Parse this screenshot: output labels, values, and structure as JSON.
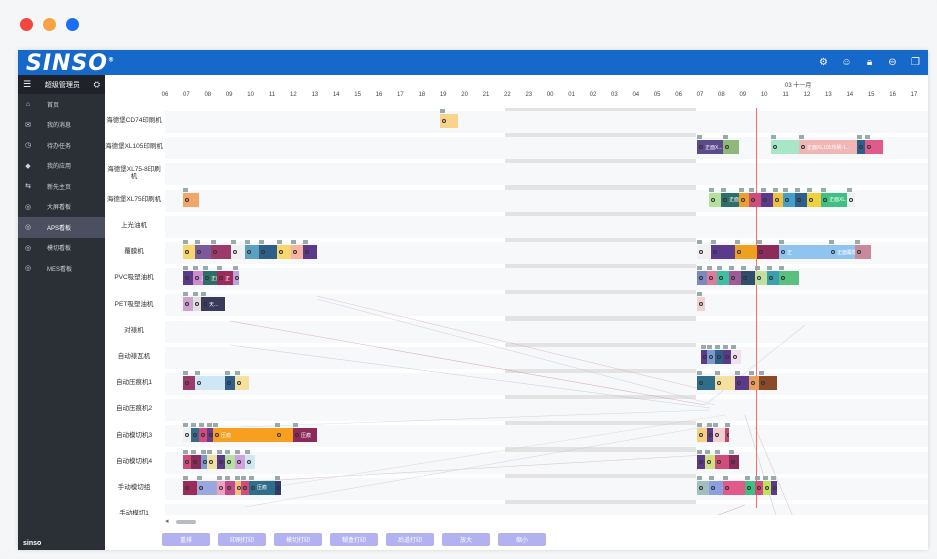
{
  "app": {
    "logo_text": "SINSO",
    "logo_mark": "®",
    "colors": {
      "topbar": "#1769c9",
      "sidebar": "#2b2f36",
      "accent_button": "#b2b2f0",
      "now_line": "#ff6b6b"
    }
  },
  "sidebar": {
    "title": "超级管理员",
    "items": [
      {
        "label": "首页",
        "icon": "home-icon",
        "active": false
      },
      {
        "label": "我的消息",
        "icon": "message-icon",
        "active": false
      },
      {
        "label": "待办任务",
        "icon": "clock-icon",
        "active": false
      },
      {
        "label": "我的应用",
        "icon": "box-icon",
        "active": false
      },
      {
        "label": "新先主页",
        "icon": "swap-icon",
        "active": false
      },
      {
        "label": "大屏看板",
        "icon": "circle-icon",
        "active": false
      },
      {
        "label": "APS看板",
        "icon": "circle-icon",
        "active": true
      },
      {
        "label": "模切看板",
        "icon": "circle-icon",
        "active": false
      },
      {
        "label": "MES看板",
        "icon": "circle-icon",
        "active": false
      }
    ],
    "footer": "sinso"
  },
  "gantt": {
    "month_label": "03 十一月",
    "hours": [
      "06",
      "07",
      "08",
      "09",
      "10",
      "11",
      "12",
      "13",
      "14",
      "15",
      "16",
      "17",
      "18",
      "19",
      "20",
      "21",
      "22",
      "23",
      "00",
      "01",
      "02",
      "03",
      "04",
      "05",
      "06",
      "07",
      "08",
      "09",
      "10",
      "11",
      "12",
      "13",
      "14",
      "15",
      "16",
      "17",
      "18"
    ],
    "rows": [
      {
        "label": "海德堡CD74印刷机"
      },
      {
        "label": "海德堡XL105印刷机"
      },
      {
        "label": "海德堡XL75-8印刷机"
      },
      {
        "label": "海德堡XL75印刷机"
      },
      {
        "label": "上光油机"
      },
      {
        "label": "覆膜机"
      },
      {
        "label": "PVC吸塑油机"
      },
      {
        "label": "PET吸塑油机"
      },
      {
        "label": "对裱机"
      },
      {
        "label": "自动裱瓦机"
      },
      {
        "label": "自动压痕机1"
      },
      {
        "label": "自动压痕机2"
      },
      {
        "label": "自动模切机3"
      },
      {
        "label": "自动模切机4"
      },
      {
        "label": "手动模切组"
      },
      {
        "label": "手动模切1"
      }
    ],
    "block_labels": {
      "b1": "正面X...",
      "b2": "正面XL105印刷-1...",
      "b3": "正面...",
      "b4": "正面XL...",
      "b5": "正",
      "b6": "正面覆膜",
      "b7": "正",
      "b8": "正面",
      "b9": "正",
      "b10": "天...",
      "b11": "压痕",
      "b12": "压痕",
      "b13": "压痕"
    }
  },
  "toolbar": {
    "buttons": [
      "重排",
      "印刷打印",
      "模切打印",
      "糊盒打印",
      "后道打印",
      "放大",
      "缩小"
    ]
  }
}
